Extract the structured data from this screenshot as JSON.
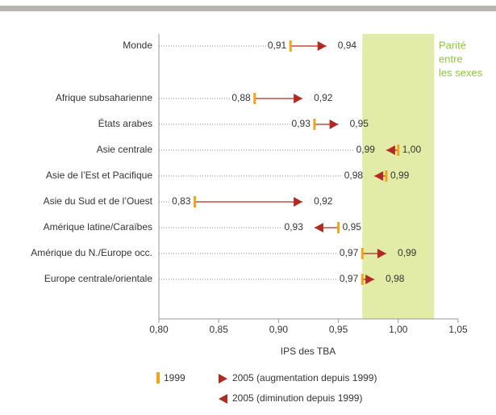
{
  "chart_data": {
    "type": "arrow-dumbbell",
    "categories": [
      "Monde",
      "Afrique subsaharienne",
      "États arabes",
      "Asie centrale",
      "Asie de l’Est et Pacifique",
      "Asie du Sud et de l’Ouest",
      "Amérique latine/Caraïbes",
      "Amérique du N./Europe occ.",
      "Europe centrale/orientale"
    ],
    "series": [
      {
        "name": "1999",
        "color": "#f5a31a",
        "values": [
          0.91,
          0.88,
          0.93,
          1.0,
          0.99,
          0.83,
          0.95,
          0.97,
          0.97
        ],
        "value_labels": [
          "0,91",
          "0,88",
          "0,93",
          "1,00",
          "0,99",
          "0,83",
          "0,95",
          "0,97",
          "0,97"
        ]
      },
      {
        "names": {
          "increase": "2005 (augmentation depuis 1999)",
          "decrease": "2005 (diminution depuis 1999)"
        },
        "color": "#b02a22",
        "values": [
          0.94,
          0.92,
          0.95,
          0.99,
          0.98,
          0.92,
          0.93,
          0.99,
          0.98
        ],
        "value_labels": [
          "0,94",
          "0,92",
          "0,95",
          "0,99",
          "0,98",
          "0,92",
          "0,93",
          "0,99",
          "0,98"
        ]
      }
    ],
    "xlabel": "IPS des TBA",
    "xlim": [
      0.8,
      1.05
    ],
    "xticks": [
      {
        "value": 0.8,
        "label": "0,80"
      },
      {
        "value": 0.85,
        "label": "0,85"
      },
      {
        "value": 0.9,
        "label": "0,90"
      },
      {
        "value": 0.95,
        "label": "0,95"
      },
      {
        "value": 1.0,
        "label": "1,00"
      },
      {
        "value": 1.05,
        "label": "1,05"
      }
    ],
    "band": {
      "range": [
        0.97,
        1.03
      ],
      "color": "#e2eca6",
      "label_color": "#8fc640",
      "label": [
        "Parité",
        "entre",
        "les sexes"
      ]
    }
  }
}
